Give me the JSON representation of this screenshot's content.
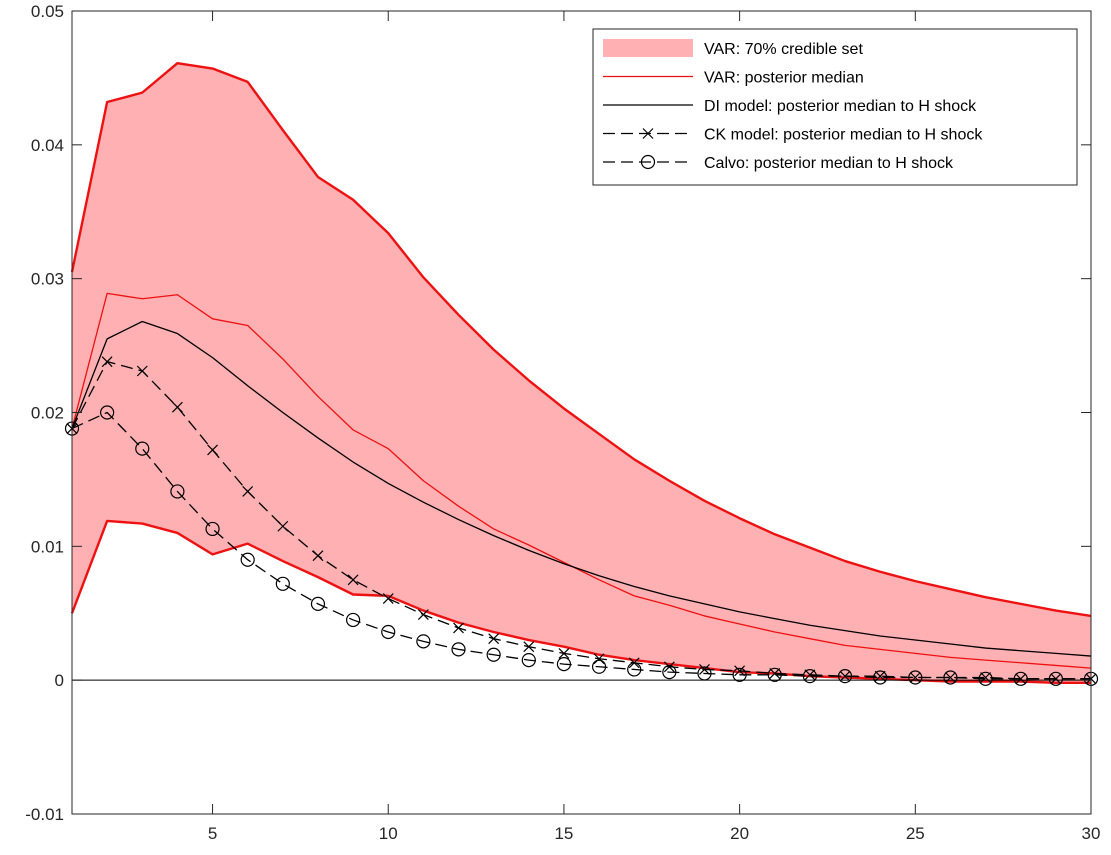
{
  "chart_data": {
    "type": "line",
    "title": "",
    "xlabel": "",
    "ylabel": "",
    "xlim": [
      1,
      30
    ],
    "ylim": [
      -0.01,
      0.05
    ],
    "xticks": [
      5,
      10,
      15,
      20,
      25,
      30
    ],
    "xtick_labels": [
      "5",
      "10",
      "15",
      "20",
      "25",
      "30"
    ],
    "yticks": [
      -0.01,
      0,
      0.01,
      0.02,
      0.03,
      0.04,
      0.05
    ],
    "ytick_labels": [
      "-0.01",
      "0",
      "0.01",
      "0.02",
      "0.03",
      "0.04",
      "0.05"
    ],
    "grid": false,
    "zero_line": true,
    "legend_position": "top-right",
    "x": [
      1,
      2,
      3,
      4,
      5,
      6,
      7,
      8,
      9,
      10,
      11,
      12,
      13,
      14,
      15,
      16,
      17,
      18,
      19,
      20,
      21,
      22,
      23,
      24,
      25,
      26,
      27,
      28,
      29,
      30
    ],
    "band": {
      "name": "VAR: 70% credible set",
      "color": "#ffb0b3",
      "edge_color": "#ee1111",
      "upper": [
        0.0305,
        0.0432,
        0.0439,
        0.0461,
        0.0457,
        0.0447,
        0.0411,
        0.0376,
        0.0359,
        0.0334,
        0.0301,
        0.0273,
        0.0247,
        0.0224,
        0.0203,
        0.0184,
        0.0165,
        0.0149,
        0.0134,
        0.0121,
        0.0109,
        0.0099,
        0.0089,
        0.0081,
        0.0074,
        0.0068,
        0.0062,
        0.0057,
        0.0052,
        0.0048
      ],
      "lower": [
        0.005,
        0.0119,
        0.0117,
        0.011,
        0.0094,
        0.0102,
        0.0089,
        0.0077,
        0.0064,
        0.0063,
        0.0052,
        0.0043,
        0.0036,
        0.003,
        0.0025,
        0.0019,
        0.0015,
        0.0012,
        0.0009,
        0.0006,
        0.0005,
        0.0003,
        0.0002,
        0.0001,
        0.0,
        -0.0001,
        -0.0001,
        -0.0001,
        -0.0002,
        -0.0002
      ]
    },
    "series": [
      {
        "name": "VAR: posterior median",
        "color": "#ee1111",
        "dash": "",
        "marker": "none",
        "values": [
          0.0188,
          0.0289,
          0.0285,
          0.0288,
          0.027,
          0.0265,
          0.024,
          0.0212,
          0.0187,
          0.0173,
          0.0149,
          0.013,
          0.0113,
          0.0101,
          0.0088,
          0.0075,
          0.0063,
          0.0056,
          0.0048,
          0.0042,
          0.0036,
          0.0031,
          0.0026,
          0.0023,
          0.002,
          0.0017,
          0.0015,
          0.0013,
          0.0011,
          0.0009
        ]
      },
      {
        "name": "DI model: posterior median to H shock",
        "color": "#000000",
        "dash": "",
        "marker": "none",
        "values": [
          0.0188,
          0.0255,
          0.0268,
          0.0259,
          0.0241,
          0.022,
          0.02,
          0.0181,
          0.0163,
          0.0147,
          0.0133,
          0.012,
          0.0108,
          0.0097,
          0.0087,
          0.0078,
          0.007,
          0.0063,
          0.0057,
          0.0051,
          0.0046,
          0.0041,
          0.0037,
          0.0033,
          0.003,
          0.0027,
          0.0024,
          0.0022,
          0.002,
          0.0018
        ]
      },
      {
        "name": "CK model: posterior median to H shock",
        "color": "#000000",
        "dash": "12,6",
        "marker": "x",
        "values": [
          0.0188,
          0.0238,
          0.0231,
          0.0204,
          0.0172,
          0.0141,
          0.0115,
          0.0093,
          0.0075,
          0.0061,
          0.0049,
          0.0039,
          0.0031,
          0.0025,
          0.002,
          0.0016,
          0.0013,
          0.001,
          0.0008,
          0.0007,
          0.0005,
          0.0004,
          0.0003,
          0.0003,
          0.0002,
          0.0002,
          0.0002,
          0.0001,
          0.0001,
          0.0001
        ]
      },
      {
        "name": "Calvo: posterior median to H shock",
        "color": "#000000",
        "dash": "12,6",
        "marker": "o",
        "values": [
          0.0188,
          0.02,
          0.0173,
          0.0141,
          0.0113,
          0.009,
          0.0072,
          0.0057,
          0.0045,
          0.0036,
          0.0029,
          0.0023,
          0.0019,
          0.0015,
          0.0012,
          0.001,
          0.0008,
          0.0006,
          0.0005,
          0.0004,
          0.0004,
          0.0003,
          0.0003,
          0.0002,
          0.0002,
          0.0002,
          0.0001,
          0.0001,
          0.0001,
          0.0001
        ]
      }
    ]
  }
}
